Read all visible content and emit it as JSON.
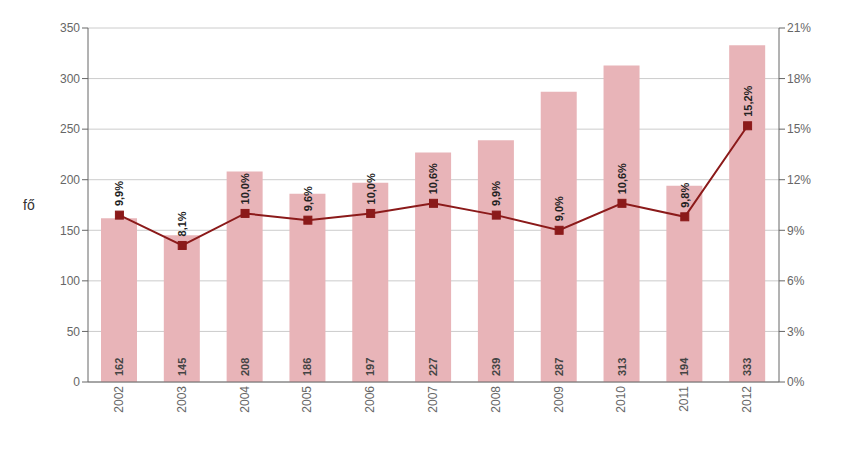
{
  "chart_data": {
    "type": "bar",
    "categories": [
      "2002",
      "2003",
      "2004",
      "2005",
      "2006",
      "2007",
      "2008",
      "2009",
      "2010",
      "2011",
      "2012"
    ],
    "ylabel": "fő",
    "ylim": [
      0,
      350
    ],
    "yticks": [
      0,
      50,
      100,
      150,
      200,
      250,
      300,
      350
    ],
    "y2lim": [
      0,
      21
    ],
    "y2ticks": [
      {
        "value": 0,
        "label": "0%"
      },
      {
        "value": 3,
        "label": "3%"
      },
      {
        "value": 6,
        "label": "6%"
      },
      {
        "value": 9,
        "label": "9%"
      },
      {
        "value": 12,
        "label": "12%"
      },
      {
        "value": 15,
        "label": "15%"
      },
      {
        "value": 18,
        "label": "18%"
      },
      {
        "value": 21,
        "label": "21%"
      }
    ],
    "grid": true,
    "data_labels": true,
    "series": [
      {
        "type": "bar",
        "color": "#e8b4b8",
        "values": [
          162,
          145,
          208,
          186,
          197,
          227,
          239,
          287,
          313,
          194,
          333
        ]
      },
      {
        "type": "line",
        "axis": "y2",
        "color": "#8b1a1a",
        "marker": "square",
        "values": [
          9.9,
          8.1,
          10.0,
          9.6,
          10.0,
          10.6,
          9.9,
          9.0,
          10.6,
          9.8,
          15.2
        ],
        "value_labels": [
          "9,9%",
          "8,1%",
          "10,0%",
          "9,6%",
          "10,0%",
          "10,6%",
          "9,9%",
          "9,0%",
          "10,6%",
          "9,8%",
          "15,2%"
        ]
      }
    ]
  }
}
